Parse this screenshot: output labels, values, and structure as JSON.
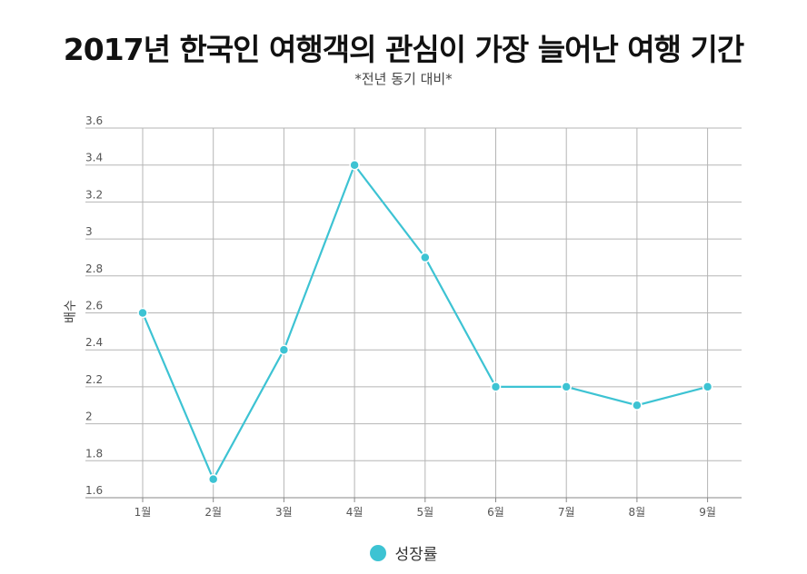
{
  "chart_data": {
    "type": "line",
    "title": "2017년 한국인 여행객의 관심이 가장 늘어난 여행 기간",
    "subtitle": "*전년 동기 대비*",
    "ylabel": "배수",
    "xlabel": "",
    "categories": [
      "1월",
      "2월",
      "3월",
      "4월",
      "5월",
      "6월",
      "7월",
      "8월",
      "9월"
    ],
    "series": [
      {
        "name": "성장률",
        "values": [
          2.6,
          1.7,
          2.4,
          3.4,
          2.9,
          2.2,
          2.2,
          2.1,
          2.2
        ]
      }
    ],
    "ylim": [
      1.6,
      3.6
    ],
    "yticks": [
      "1.6",
      "1.8",
      "2",
      "2.2",
      "2.4",
      "2.6",
      "2.8",
      "3",
      "3.2",
      "3.4",
      "3.6"
    ],
    "grid": true,
    "legend_position": "bottom-center",
    "colors": {
      "series": "#3dc3d3",
      "grid": "#b5b5b5",
      "axis": "#888888"
    }
  }
}
